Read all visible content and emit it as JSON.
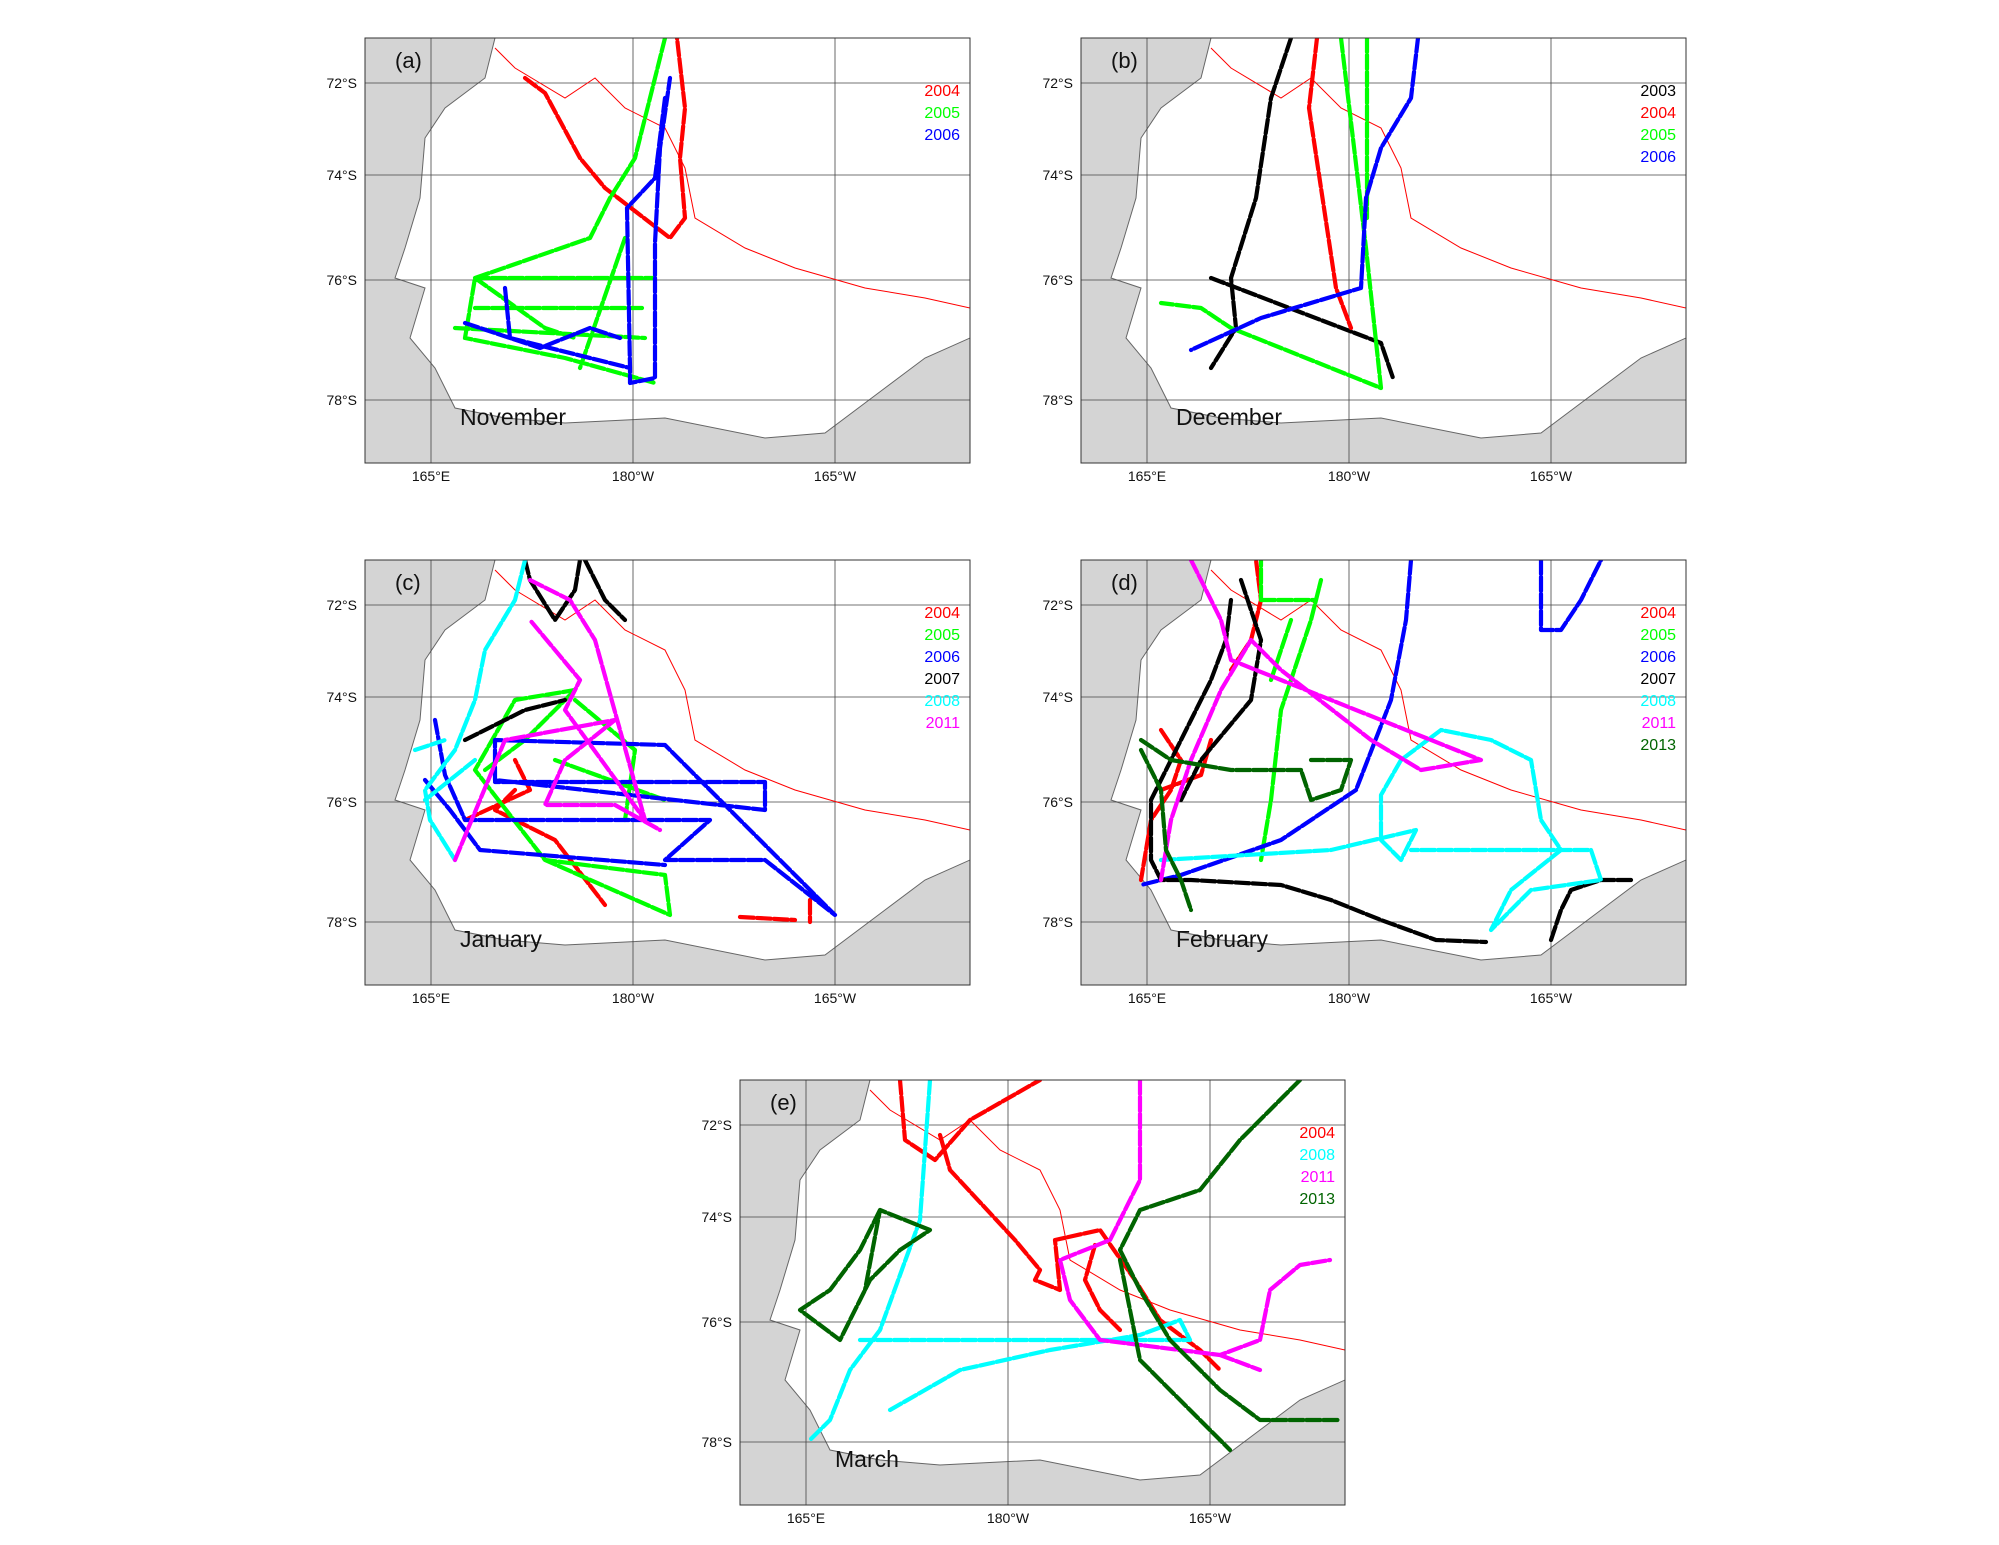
{
  "figure": {
    "panels": [
      {
        "id": "a",
        "letter": "(a)",
        "month": "November",
        "lat_labels": [
          "72°S",
          "74°S",
          "76°S",
          "78°S"
        ],
        "lon_labels": [
          "165°E",
          "180°W",
          "165°W"
        ],
        "legend": [
          {
            "year": "2004",
            "color": "#ff0000"
          },
          {
            "year": "2005",
            "color": "#00ff00"
          },
          {
            "year": "2006",
            "color": "#0000ff"
          }
        ]
      },
      {
        "id": "b",
        "letter": "(b)",
        "month": "December",
        "lat_labels": [
          "72°S",
          "74°S",
          "76°S",
          "78°S"
        ],
        "lon_labels": [
          "165°E",
          "180°W",
          "165°W"
        ],
        "legend": [
          {
            "year": "2003",
            "color": "#000000"
          },
          {
            "year": "2004",
            "color": "#ff0000"
          },
          {
            "year": "2005",
            "color": "#00ff00"
          },
          {
            "year": "2006",
            "color": "#0000ff"
          }
        ]
      },
      {
        "id": "c",
        "letter": "(c)",
        "month": "January",
        "lat_labels": [
          "72°S",
          "74°S",
          "76°S",
          "78°S"
        ],
        "lon_labels": [
          "165°E",
          "180°W",
          "165°W"
        ],
        "legend": [
          {
            "year": "2004",
            "color": "#ff0000"
          },
          {
            "year": "2005",
            "color": "#00ff00"
          },
          {
            "year": "2006",
            "color": "#0000ff"
          },
          {
            "year": "2007",
            "color": "#000000"
          },
          {
            "year": "2008",
            "color": "#00ffff"
          },
          {
            "year": "2011",
            "color": "#ff00ff"
          }
        ]
      },
      {
        "id": "d",
        "letter": "(d)",
        "month": "February",
        "lat_labels": [
          "72°S",
          "74°S",
          "76°S",
          "78°S"
        ],
        "lon_labels": [
          "165°E",
          "180°W",
          "165°W"
        ],
        "legend": [
          {
            "year": "2004",
            "color": "#ff0000"
          },
          {
            "year": "2005",
            "color": "#00ff00"
          },
          {
            "year": "2006",
            "color": "#0000ff"
          },
          {
            "year": "2007",
            "color": "#000000"
          },
          {
            "year": "2008",
            "color": "#00ffff"
          },
          {
            "year": "2011",
            "color": "#ff00ff"
          },
          {
            "year": "2013",
            "color": "#006400"
          }
        ]
      },
      {
        "id": "e",
        "letter": "(e)",
        "month": "March",
        "lat_labels": [
          "72°S",
          "74°S",
          "76°S",
          "78°S"
        ],
        "lon_labels": [
          "165°E",
          "180°W",
          "165°W"
        ],
        "legend": [
          {
            "year": "2004",
            "color": "#ff0000"
          },
          {
            "year": "2008",
            "color": "#00ffff"
          },
          {
            "year": "2011",
            "color": "#ff00ff"
          },
          {
            "year": "2013",
            "color": "#006400"
          }
        ]
      }
    ],
    "colors": {
      "land": "#d4d4d4",
      "coastline": "#666666",
      "gridline": "#444444",
      "ice_edge": "#ff0000"
    }
  }
}
